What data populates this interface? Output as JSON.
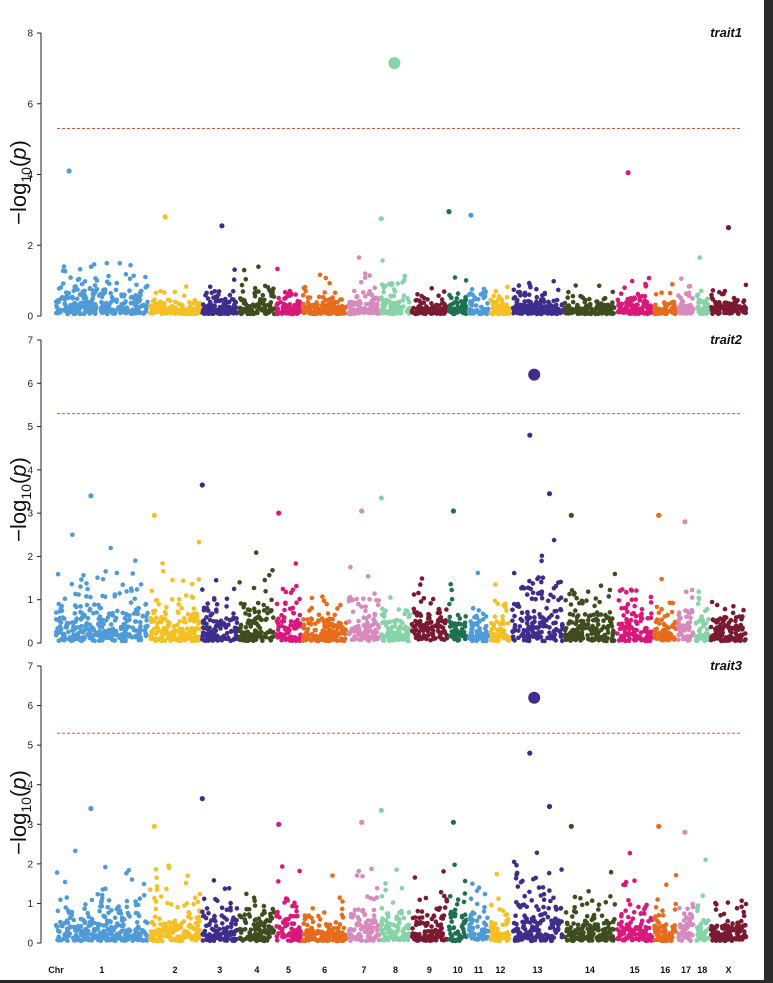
{
  "chart_data": {
    "type": "scatter",
    "subtype": "manhattan",
    "ylabel": {
      "prefix": "−log",
      "sub": "10",
      "open": "(",
      "var": "p",
      "close": ")"
    },
    "xlabel_prefix": "Chr",
    "chromosomes": [
      {
        "label": "1",
        "color": "#4e9bd8",
        "start": 0,
        "end": 210
      },
      {
        "label": "2",
        "color": "#f5c024",
        "start": 215,
        "end": 330
      },
      {
        "label": "3",
        "color": "#3f2d8c",
        "start": 335,
        "end": 415
      },
      {
        "label": "4",
        "color": "#3f4d1e",
        "start": 420,
        "end": 500
      },
      {
        "label": "5",
        "color": "#d9187a",
        "start": 505,
        "end": 560
      },
      {
        "label": "6",
        "color": "#e86b1c",
        "start": 565,
        "end": 665
      },
      {
        "label": "7",
        "color": "#d889be",
        "start": 670,
        "end": 740
      },
      {
        "label": "8",
        "color": "#86d3a8",
        "start": 745,
        "end": 810
      },
      {
        "label": "9",
        "color": "#7a1a30",
        "start": 815,
        "end": 895
      },
      {
        "label": "10",
        "color": "#1e7050",
        "start": 900,
        "end": 940
      },
      {
        "label": "11",
        "color": "#4e9bd8",
        "start": 945,
        "end": 990
      },
      {
        "label": "12",
        "color": "#f5c024",
        "start": 995,
        "end": 1040
      },
      {
        "label": "13",
        "color": "#3f2d8c",
        "start": 1045,
        "end": 1160
      },
      {
        "label": "14",
        "color": "#3f4d1e",
        "start": 1165,
        "end": 1280
      },
      {
        "label": "15",
        "color": "#d9187a",
        "start": 1285,
        "end": 1365
      },
      {
        "label": "16",
        "color": "#e86b1c",
        "start": 1370,
        "end": 1420
      },
      {
        "label": "17",
        "color": "#d889be",
        "start": 1425,
        "end": 1460
      },
      {
        "label": "18",
        "color": "#86d3a8",
        "start": 1465,
        "end": 1495
      },
      {
        "label": "X",
        "color": "#7a1a30",
        "start": 1500,
        "end": 1580
      }
    ],
    "panels": [
      {
        "title": "trait1",
        "ylim": [
          0,
          8
        ],
        "yticks": [
          0,
          2,
          4,
          6,
          8
        ],
        "threshold": 5.3,
        "lead": {
          "x": 775,
          "y": 7.15,
          "color": "#86d3a8"
        },
        "noise": [
          1.0,
          0.45,
          0.6,
          0.7,
          0.6,
          0.55,
          0.8,
          0.8,
          0.45,
          0.7,
          0.6,
          0.45,
          0.6,
          0.55,
          0.75,
          0.55,
          0.8,
          0.7,
          0.6
        ],
        "highlights": [
          {
            "x": 30,
            "y": 4.1,
            "color": "#4e9bd8"
          },
          {
            "x": 1310,
            "y": 4.05,
            "color": "#d9187a"
          },
          {
            "x": 900,
            "y": 2.95,
            "color": "#1e7050"
          },
          {
            "x": 950,
            "y": 2.85,
            "color": "#4e9bd8"
          },
          {
            "x": 250,
            "y": 2.8,
            "color": "#f5c024"
          },
          {
            "x": 745,
            "y": 2.75,
            "color": "#86d3a8"
          },
          {
            "x": 380,
            "y": 2.55,
            "color": "#3f2d8c"
          },
          {
            "x": 1540,
            "y": 2.5,
            "color": "#7a1a30"
          }
        ]
      },
      {
        "title": "trait2",
        "ylim": [
          0,
          7
        ],
        "yticks": [
          0,
          1,
          2,
          3,
          4,
          5,
          6,
          7
        ],
        "threshold": 5.3,
        "lead": {
          "x": 1095,
          "y": 6.2,
          "color": "#3f2d8c"
        },
        "noise": [
          1.15,
          1.1,
          1.0,
          1.0,
          1.2,
          0.75,
          1.2,
          0.95,
          1.1,
          0.95,
          1.0,
          0.8,
          1.5,
          1.05,
          1.0,
          1.0,
          1.1,
          0.95,
          0.8
        ],
        "highlights": [
          {
            "x": 1085,
            "y": 4.8,
            "color": "#3f2d8c"
          },
          {
            "x": 335,
            "y": 3.65,
            "color": "#3f2d8c"
          },
          {
            "x": 1130,
            "y": 3.45,
            "color": "#3f2d8c"
          },
          {
            "x": 80,
            "y": 3.4,
            "color": "#4e9bd8"
          },
          {
            "x": 745,
            "y": 3.35,
            "color": "#86d3a8"
          },
          {
            "x": 700,
            "y": 3.05,
            "color": "#d889be"
          },
          {
            "x": 910,
            "y": 3.05,
            "color": "#1e7050"
          },
          {
            "x": 510,
            "y": 3.0,
            "color": "#d9187a"
          },
          {
            "x": 1380,
            "y": 2.95,
            "color": "#e86b1c"
          },
          {
            "x": 1180,
            "y": 2.95,
            "color": "#3f4d1e"
          },
          {
            "x": 225,
            "y": 2.95,
            "color": "#f5c024"
          },
          {
            "x": 1440,
            "y": 2.8,
            "color": "#d889be"
          }
        ]
      },
      {
        "title": "trait3",
        "ylim": [
          0,
          7
        ],
        "yticks": [
          0,
          1,
          2,
          3,
          4,
          5,
          6,
          7
        ],
        "threshold": 5.3,
        "lead": {
          "x": 1095,
          "y": 6.2,
          "color": "#3f2d8c"
        },
        "noise": [
          1.15,
          1.1,
          1.0,
          1.0,
          1.2,
          0.75,
          1.2,
          0.95,
          1.1,
          0.95,
          1.0,
          0.8,
          1.5,
          1.05,
          1.0,
          1.0,
          1.1,
          0.95,
          0.8
        ],
        "highlights": [
          {
            "x": 1085,
            "y": 4.8,
            "color": "#3f2d8c"
          },
          {
            "x": 335,
            "y": 3.65,
            "color": "#3f2d8c"
          },
          {
            "x": 1130,
            "y": 3.45,
            "color": "#3f2d8c"
          },
          {
            "x": 80,
            "y": 3.4,
            "color": "#4e9bd8"
          },
          {
            "x": 745,
            "y": 3.35,
            "color": "#86d3a8"
          },
          {
            "x": 700,
            "y": 3.05,
            "color": "#d889be"
          },
          {
            "x": 910,
            "y": 3.05,
            "color": "#1e7050"
          },
          {
            "x": 510,
            "y": 3.0,
            "color": "#d9187a"
          },
          {
            "x": 1380,
            "y": 2.95,
            "color": "#e86b1c"
          },
          {
            "x": 1180,
            "y": 2.95,
            "color": "#3f4d1e"
          },
          {
            "x": 225,
            "y": 2.95,
            "color": "#f5c024"
          },
          {
            "x": 1440,
            "y": 2.8,
            "color": "#d889be"
          }
        ]
      }
    ],
    "threshold_color": "#e0504a"
  }
}
